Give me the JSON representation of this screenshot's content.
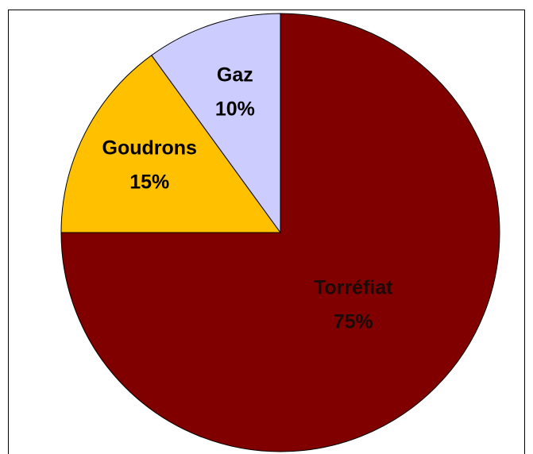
{
  "chart_data": {
    "type": "pie",
    "categories": [
      "Torréfiat",
      "Goudrons",
      "Gaz"
    ],
    "values": [
      75,
      15,
      10
    ],
    "value_labels": [
      "75%",
      "15%",
      "10%"
    ],
    "colors": [
      "#800000",
      "#ffc000",
      "#ccccff"
    ],
    "label_colors": [
      "#1a0a0a",
      "#000000",
      "#000000"
    ]
  }
}
